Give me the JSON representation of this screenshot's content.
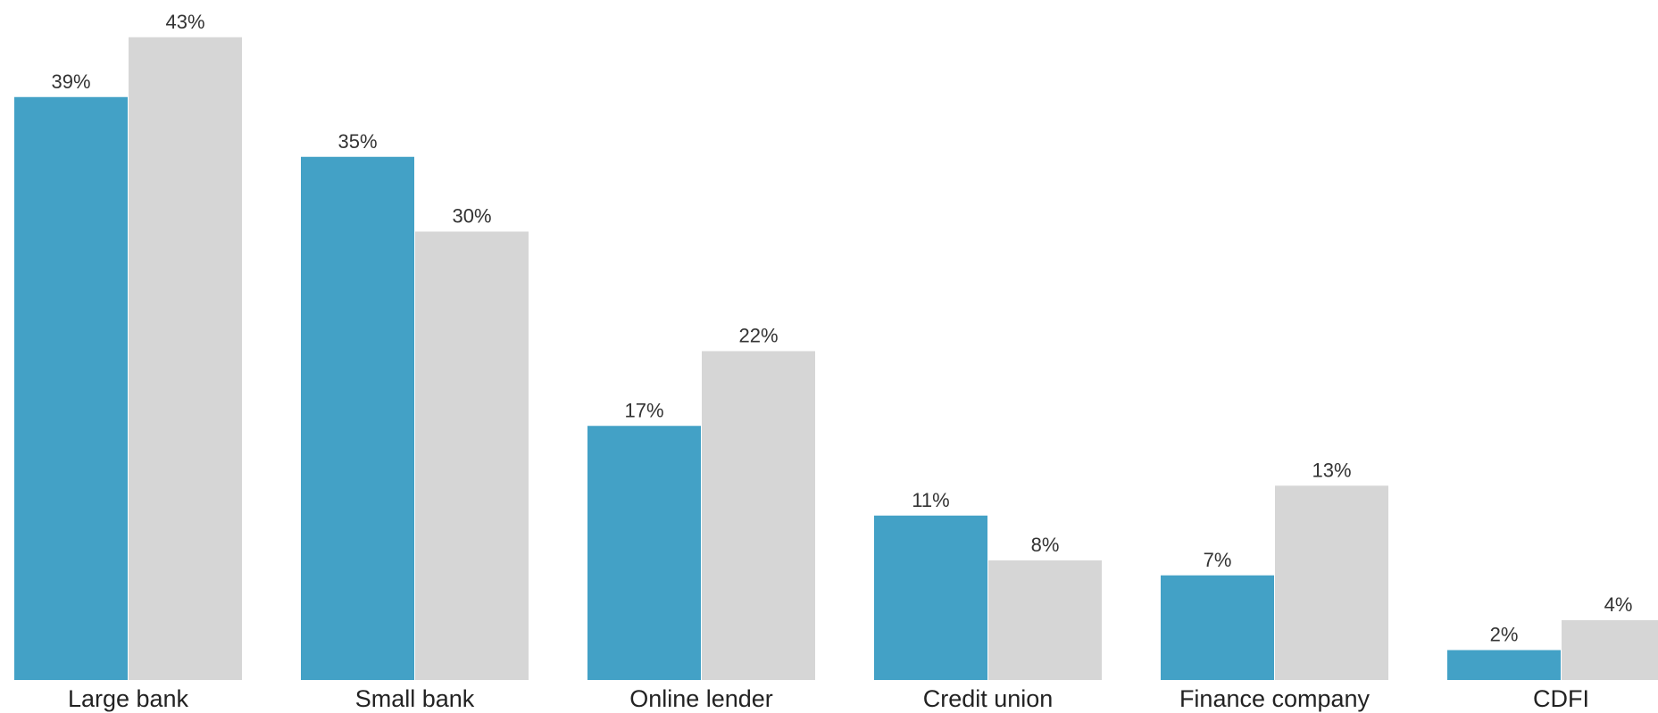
{
  "chart_data": {
    "type": "bar",
    "categories": [
      "Large bank",
      "Small bank",
      "Online lender",
      "Credit union",
      "Finance company",
      "CDFI"
    ],
    "series": [
      {
        "values": [
          39,
          35,
          17,
          11,
          7,
          2
        ],
        "labels": [
          "39%",
          "35%",
          "17%",
          "11%",
          "7%",
          "2%"
        ],
        "color": "#43a1c6"
      },
      {
        "values": [
          43,
          30,
          22,
          8,
          13,
          4
        ],
        "labels": [
          "43%",
          "30%",
          "22%",
          "8%",
          "13%",
          "4%"
        ],
        "color": "#d6d6d6"
      }
    ],
    "title": "",
    "xlabel": "",
    "ylabel": "",
    "ylim": [
      0,
      43
    ],
    "grid": false,
    "legend": "none"
  }
}
